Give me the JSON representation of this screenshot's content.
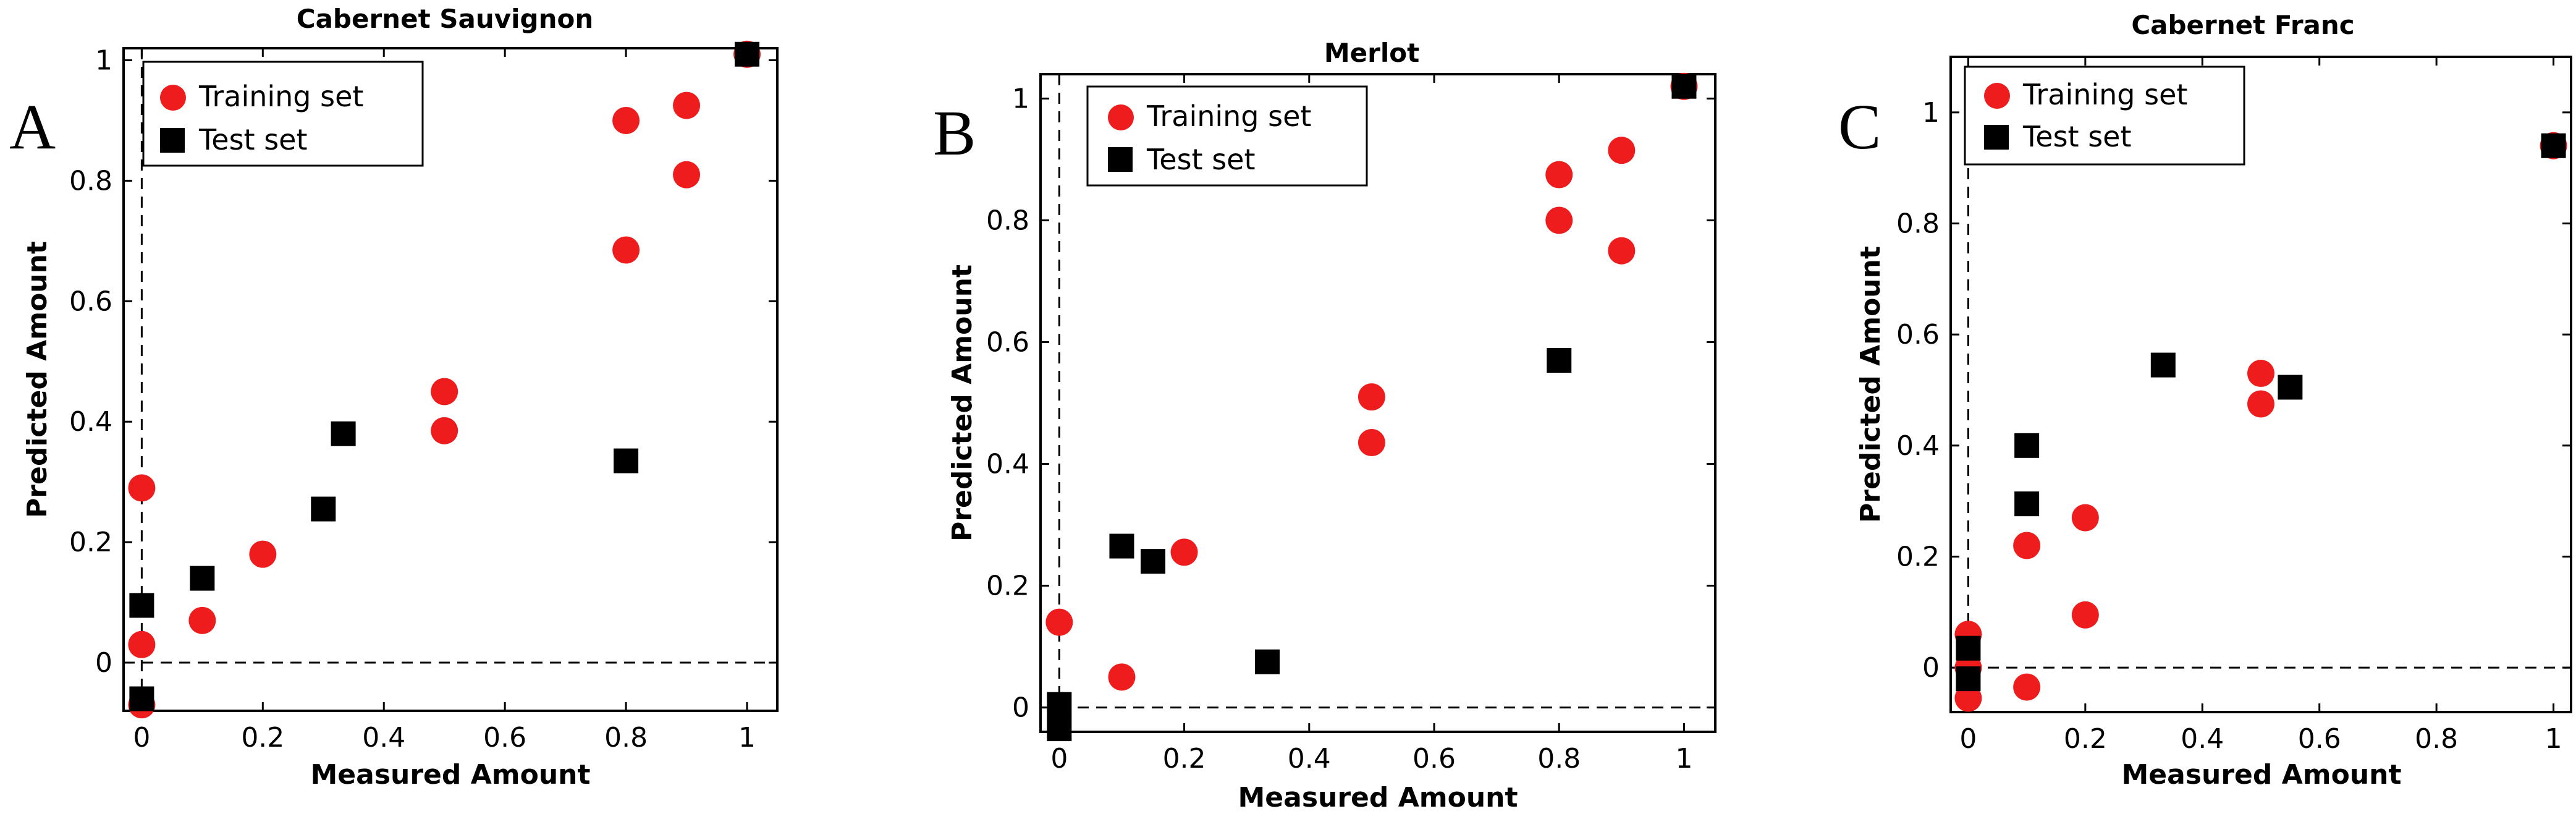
{
  "chart_data": [
    {
      "type": "scatter",
      "panel_label": "A",
      "title": "Cabernet Sauvignon",
      "xlabel": "Measured Amount",
      "ylabel": "Predicted Amount",
      "xlim": [
        -0.03,
        1.05
      ],
      "ylim": [
        -0.08,
        1.02
      ],
      "xticks": [
        0,
        0.2,
        0.4,
        0.6,
        0.8,
        1
      ],
      "xtick_labels": [
        "0",
        "0.2",
        "0.4",
        "0.6",
        "0.8",
        "1"
      ],
      "yticks": [
        0,
        0.2,
        0.4,
        0.6,
        0.8,
        1
      ],
      "ytick_labels": [
        "0",
        "0.2",
        "0.4",
        "0.6",
        "0.8",
        "1"
      ],
      "legend": [
        "Training set",
        "Test set"
      ],
      "series": [
        {
          "name": "Training set",
          "marker": "circle",
          "color": "#ee1c1c",
          "x": [
            0,
            0,
            0,
            0.1,
            0.2,
            0.5,
            0.5,
            0.8,
            0.8,
            0.9,
            0.9,
            1.0
          ],
          "y": [
            0.29,
            0.03,
            -0.07,
            0.07,
            0.18,
            0.45,
            0.385,
            0.685,
            0.9,
            0.925,
            0.81,
            1.01
          ]
        },
        {
          "name": "Test set",
          "marker": "square",
          "color": "#000000",
          "x": [
            0,
            0,
            0.1,
            0.3,
            0.333,
            0.8,
            1.0
          ],
          "y": [
            0.095,
            -0.06,
            0.14,
            0.255,
            0.38,
            0.335,
            1.01
          ]
        }
      ]
    },
    {
      "type": "scatter",
      "panel_label": "B",
      "title": "Merlot",
      "xlabel": "Measured Amount",
      "ylabel": "Predicted Amount",
      "xlim": [
        -0.03,
        1.05
      ],
      "ylim": [
        -0.04,
        1.04
      ],
      "xticks": [
        0,
        0.2,
        0.4,
        0.6,
        0.8,
        1
      ],
      "xtick_labels": [
        "0",
        "0.2",
        "0.4",
        "0.6",
        "0.8",
        "1"
      ],
      "yticks": [
        0,
        0.2,
        0.4,
        0.6,
        0.8,
        1
      ],
      "ytick_labels": [
        "0",
        "0.2",
        "0.4",
        "0.6",
        "0.8",
        "1"
      ],
      "legend": [
        "Training set",
        "Test set"
      ],
      "series": [
        {
          "name": "Training set",
          "marker": "circle",
          "color": "#ee1c1c",
          "x": [
            0,
            0.1,
            0.2,
            0.5,
            0.5,
            0.8,
            0.8,
            0.9,
            0.9,
            1.0
          ],
          "y": [
            0.14,
            0.05,
            0.255,
            0.51,
            0.435,
            0.875,
            0.8,
            0.915,
            0.75,
            1.02
          ]
        },
        {
          "name": "Test set",
          "marker": "square",
          "color": "#000000",
          "x": [
            0,
            0,
            0.1,
            0.15,
            0.333,
            0.8,
            1.0
          ],
          "y": [
            0.005,
            -0.035,
            0.265,
            0.24,
            0.075,
            0.57,
            1.02
          ]
        }
      ]
    },
    {
      "type": "scatter",
      "panel_label": "C",
      "title": "Cabernet Franc",
      "xlabel": "Measured Amount",
      "ylabel": "Predicted Amount",
      "xlim": [
        -0.03,
        1.03
      ],
      "ylim": [
        -0.08,
        1.1
      ],
      "xticks": [
        0,
        0.2,
        0.4,
        0.6,
        0.8,
        1
      ],
      "xtick_labels": [
        "0",
        "0.2",
        "0.4",
        "0.6",
        "0.8",
        "1"
      ],
      "yticks": [
        0,
        0.2,
        0.4,
        0.6,
        0.8,
        1
      ],
      "ytick_labels": [
        "0",
        "0.2",
        "0.4",
        "0.6",
        "0.8",
        "1"
      ],
      "legend": [
        "Training set",
        "Test set"
      ],
      "series": [
        {
          "name": "Training set",
          "marker": "circle",
          "color": "#ee1c1c",
          "x": [
            0,
            0,
            0,
            0.1,
            0.1,
            0.2,
            0.2,
            0.5,
            0.5,
            1.0
          ],
          "y": [
            0.06,
            0.0,
            -0.055,
            0.22,
            -0.035,
            0.27,
            0.095,
            0.53,
            0.475,
            0.94
          ]
        },
        {
          "name": "Test set",
          "marker": "square",
          "color": "#000000",
          "x": [
            0,
            0,
            0.1,
            0.1,
            0.333,
            0.55,
            1.0
          ],
          "y": [
            0.035,
            -0.02,
            0.4,
            0.295,
            0.545,
            0.505,
            0.94
          ]
        }
      ]
    }
  ]
}
